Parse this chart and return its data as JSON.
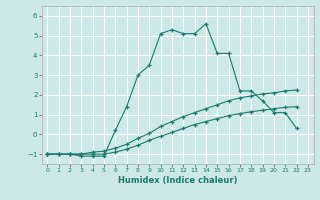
{
  "xlabel": "Humidex (Indice chaleur)",
  "bg_color": "#cce8e8",
  "grid_color": "#ffffff",
  "line_color": "#1a7a6e",
  "xlim": [
    -0.5,
    23.5
  ],
  "ylim": [
    -1.5,
    6.5
  ],
  "xticks": [
    0,
    1,
    2,
    3,
    4,
    5,
    6,
    7,
    8,
    9,
    10,
    11,
    12,
    13,
    14,
    15,
    16,
    17,
    18,
    19,
    20,
    21,
    22,
    23
  ],
  "yticks": [
    -1,
    0,
    1,
    2,
    3,
    4,
    5,
    6
  ],
  "line1_x": [
    0,
    1,
    2,
    3,
    4,
    5,
    6,
    7,
    8,
    9,
    10,
    11,
    12,
    13,
    14,
    15,
    16,
    17,
    18,
    19,
    20,
    21,
    22
  ],
  "line1_y": [
    -1,
    -1,
    -1,
    -1.1,
    -1.1,
    -1.1,
    0.2,
    1.4,
    3.0,
    3.5,
    5.1,
    5.3,
    5.1,
    5.1,
    5.6,
    4.1,
    4.1,
    2.2,
    2.2,
    1.7,
    1.1,
    1.1,
    0.3
  ],
  "line2_x": [
    0,
    1,
    2,
    3,
    4,
    5,
    6,
    7,
    8,
    9,
    10,
    11,
    12,
    13,
    14,
    15,
    16,
    17,
    18,
    19,
    20,
    21,
    22
  ],
  "line2_y": [
    -1,
    -1,
    -1,
    -1,
    -0.9,
    -0.85,
    -0.7,
    -0.5,
    -0.2,
    0.05,
    0.4,
    0.65,
    0.9,
    1.1,
    1.3,
    1.5,
    1.7,
    1.85,
    1.95,
    2.05,
    2.1,
    2.2,
    2.25
  ],
  "line3_x": [
    0,
    1,
    2,
    3,
    4,
    5,
    6,
    7,
    8,
    9,
    10,
    11,
    12,
    13,
    14,
    15,
    16,
    17,
    18,
    19,
    20,
    21,
    22
  ],
  "line3_y": [
    -1,
    -1,
    -1,
    -1,
    -1,
    -1,
    -0.9,
    -0.75,
    -0.55,
    -0.3,
    -0.1,
    0.1,
    0.3,
    0.5,
    0.65,
    0.8,
    0.95,
    1.05,
    1.15,
    1.22,
    1.3,
    1.37,
    1.4
  ]
}
